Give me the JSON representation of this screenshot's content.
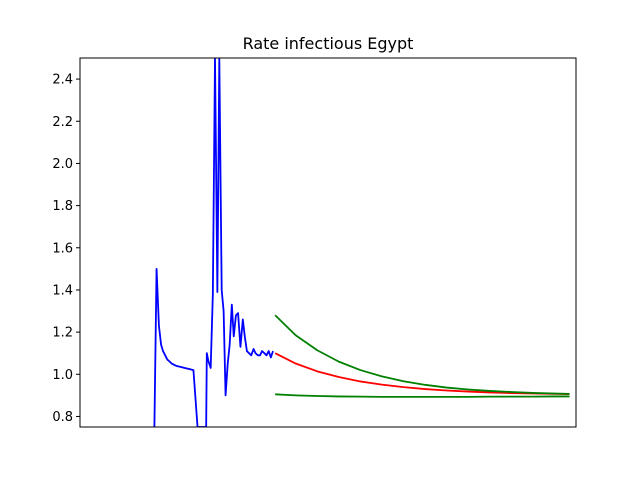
{
  "chart_data": {
    "type": "line",
    "title": "Rate infectious Egypt",
    "xlabel": "",
    "ylabel": "",
    "xlim": [
      0,
      230
    ],
    "ylim": [
      0.75,
      2.5
    ],
    "yticks": [
      0.8,
      1.0,
      1.2,
      1.4,
      1.6,
      1.8,
      2.0,
      2.2,
      2.4
    ],
    "xticks": [],
    "grid": false,
    "legend": "none",
    "series": [
      {
        "color": "#0000ff",
        "x": [
          34.5,
          35.5,
          36.6,
          37.6,
          38.5,
          39.5,
          40.5,
          41.6,
          42.6,
          44.6,
          46.6,
          48.6,
          50.6,
          52.6,
          54.5,
          56.6,
          58.5,
          58.8,
          59.6,
          60.6,
          61.6,
          62.6,
          63.7,
          64.6,
          65.7,
          66.6,
          67.5,
          68.5,
          69.4,
          70.4,
          71.3,
          72.3,
          73.3,
          74.4,
          75.5,
          76.4,
          77.4,
          78.4,
          79.4,
          80.5,
          81.4,
          82.5,
          83.5,
          84.4,
          85.5,
          86.5,
          87.5,
          88.5,
          89.5
        ],
        "y": [
          0.75,
          1.5,
          1.23,
          1.14,
          1.11,
          1.09,
          1.07,
          1.06,
          1.05,
          1.04,
          1.035,
          1.03,
          1.025,
          1.02,
          0.75,
          0.75,
          0.75,
          1.1,
          1.06,
          1.03,
          1.38,
          2.5,
          1.39,
          2.5,
          1.4,
          1.3,
          0.9,
          1.05,
          1.14,
          1.33,
          1.18,
          1.28,
          1.29,
          1.13,
          1.26,
          1.18,
          1.11,
          1.1,
          1.09,
          1.12,
          1.1,
          1.09,
          1.09,
          1.11,
          1.1,
          1.09,
          1.11,
          1.08,
          1.11
        ]
      },
      {
        "color": "#ff0000",
        "x": [
          90.5,
          100,
          110,
          120,
          130,
          140,
          150,
          160,
          170,
          180,
          190,
          200,
          210,
          220,
          227
        ],
        "y": [
          1.1,
          1.051,
          1.014,
          0.987,
          0.966,
          0.951,
          0.939,
          0.93,
          0.923,
          0.918,
          0.914,
          0.911,
          0.909,
          0.907,
          0.906
        ]
      },
      {
        "color": "#008000",
        "x": [
          90.5,
          100,
          110,
          120,
          130,
          140,
          150,
          160,
          170,
          180,
          190,
          200,
          210,
          220,
          227
        ],
        "y": [
          1.28,
          1.185,
          1.114,
          1.06,
          1.02,
          0.99,
          0.967,
          0.95,
          0.937,
          0.928,
          0.921,
          0.916,
          0.912,
          0.909,
          0.907
        ]
      },
      {
        "color": "#008000",
        "x": [
          90.5,
          100,
          110,
          120,
          130,
          140,
          150,
          160,
          170,
          180,
          190,
          200,
          210,
          220,
          227
        ],
        "y": [
          0.905,
          0.9,
          0.897,
          0.895,
          0.894,
          0.893,
          0.893,
          0.893,
          0.893,
          0.893,
          0.894,
          0.894,
          0.894,
          0.895,
          0.895
        ]
      }
    ]
  }
}
